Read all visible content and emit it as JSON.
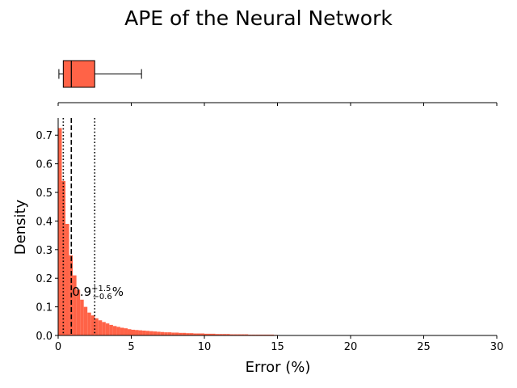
{
  "chart_data": {
    "type": "bar",
    "title": "APE of the Neural Network",
    "xlabel": "Error (%)",
    "ylabel": "Density",
    "xlim": [
      0,
      30
    ],
    "ylim": [
      0,
      0.76
    ],
    "grid": false,
    "bar_color": "#ff6347",
    "box_color": "#ff6347",
    "xticks": [
      0,
      5,
      10,
      15,
      20,
      25,
      30
    ],
    "yticks": [
      0.0,
      0.1,
      0.2,
      0.3,
      0.4,
      0.5,
      0.6,
      0.7
    ],
    "histogram": {
      "bin_width": 0.25,
      "densities": [
        0.725,
        0.54,
        0.39,
        0.28,
        0.21,
        0.16,
        0.125,
        0.1,
        0.08,
        0.07,
        0.06,
        0.053,
        0.047,
        0.042,
        0.037,
        0.033,
        0.03,
        0.027,
        0.025,
        0.022,
        0.02,
        0.019,
        0.018,
        0.017,
        0.016,
        0.015,
        0.014,
        0.013,
        0.012,
        0.011,
        0.011,
        0.01,
        0.01,
        0.009,
        0.009,
        0.008,
        0.008,
        0.007,
        0.007,
        0.007,
        0.006,
        0.006,
        0.006,
        0.005,
        0.005,
        0.005,
        0.005,
        0.004,
        0.004,
        0.004,
        0.004,
        0.004,
        0.003,
        0.003,
        0.003,
        0.003,
        0.003,
        0.003,
        0.003,
        0.002
      ]
    },
    "tail_density": 0.001,
    "tail_end": 30,
    "boxplot": {
      "whisker_low": 0.05,
      "q1": 0.35,
      "median": 0.9,
      "q3": 2.5,
      "whisker_high": 5.7
    },
    "median_line": 0.9,
    "quartile_lines": [
      0.35,
      2.5
    ],
    "annotation": {
      "main": "0.9",
      "sup": "+1.5",
      "sub": "−0.6",
      "unit": "%",
      "x": 0.9,
      "y": 0.155
    }
  }
}
